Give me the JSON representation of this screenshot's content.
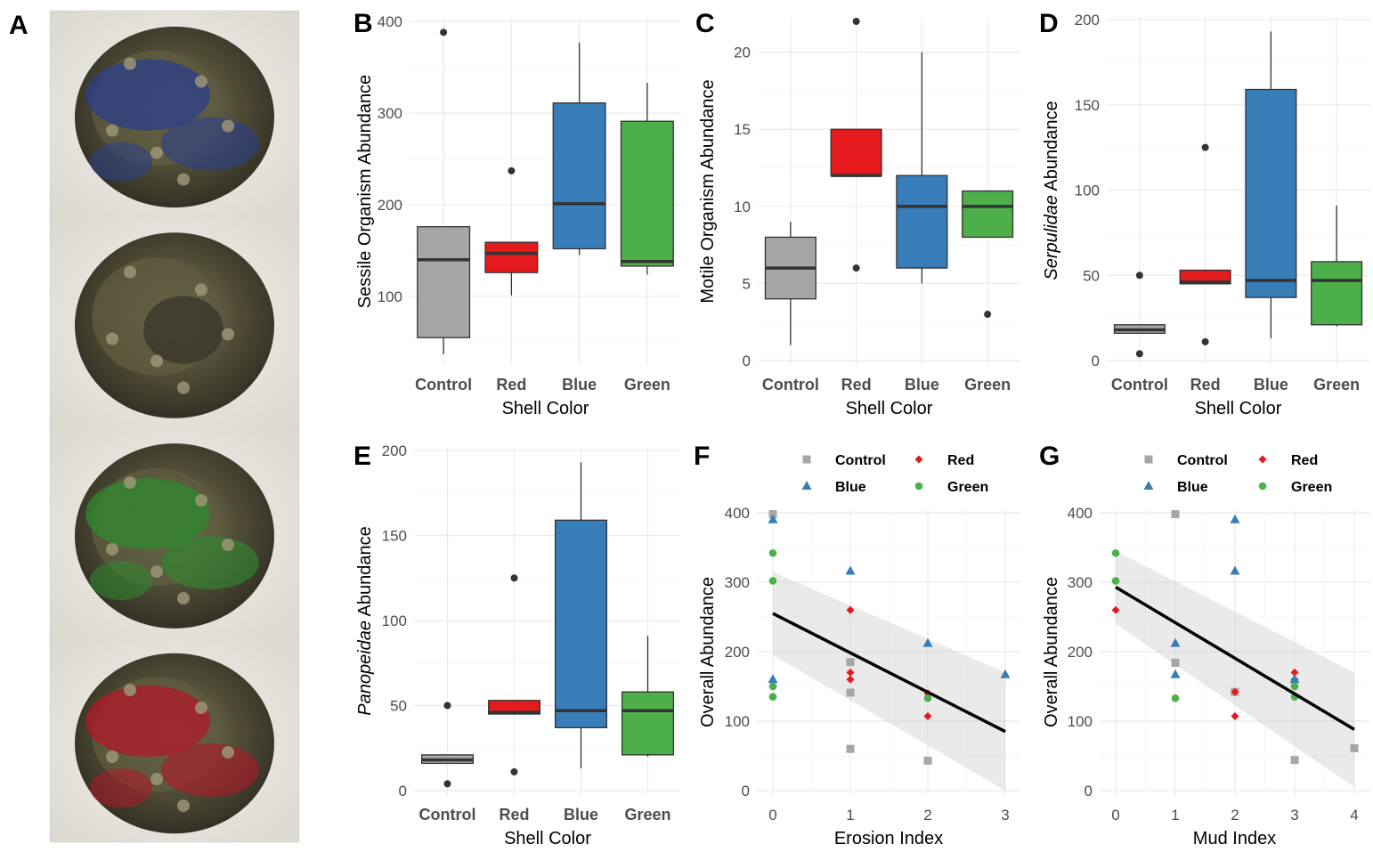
{
  "panel_letters": [
    "A",
    "B",
    "C",
    "D",
    "E",
    "F",
    "G"
  ],
  "colors": {
    "Control": "#a6a6a6",
    "Red": "#e41a1c",
    "Blue": "#377eb8",
    "Green": "#4daf4a"
  },
  "photo_panel": {
    "letter": "A",
    "photos": [
      {
        "name": "blue-painted-oyster-photo",
        "tint": "#2b3f8a"
      },
      {
        "name": "control-oyster-photo",
        "tint": "#6b6a4a"
      },
      {
        "name": "green-painted-oyster-photo",
        "tint": "#2e8a2e"
      },
      {
        "name": "red-painted-oyster-photo",
        "tint": "#b01828"
      }
    ]
  },
  "chart_data": [
    {
      "panel": "B",
      "type": "box",
      "categories": [
        "Control",
        "Red",
        "Blue",
        "Green"
      ],
      "xlabel": "Shell Color",
      "ylabel_parts": [
        {
          "text": "Sessile Organism Abundance",
          "italic": false
        }
      ],
      "ylim": [
        30,
        400
      ],
      "yticks": [
        100,
        200,
        300,
        400
      ],
      "boxes": [
        {
          "category": "Control",
          "low": 37,
          "q1": 55,
          "median": 140,
          "q3": 176,
          "high": 176,
          "outliers": [
            388
          ]
        },
        {
          "category": "Red",
          "low": 101,
          "q1": 126,
          "median": 147,
          "q3": 159,
          "high": 159,
          "outliers": [
            237
          ]
        },
        {
          "category": "Blue",
          "low": 145,
          "q1": 152,
          "median": 201,
          "q3": 311,
          "high": 377,
          "outliers": []
        },
        {
          "category": "Green",
          "low": 124,
          "q1": 133,
          "median": 138,
          "q3": 291,
          "high": 333,
          "outliers": []
        }
      ]
    },
    {
      "panel": "C",
      "type": "box",
      "categories": [
        "Control",
        "Red",
        "Blue",
        "Green"
      ],
      "xlabel": "Shell Color",
      "ylabel_parts": [
        {
          "text": "Motile Organism Abundance",
          "italic": false
        }
      ],
      "ylim": [
        0,
        22
      ],
      "yticks": [
        0,
        5,
        10,
        15,
        20
      ],
      "boxes": [
        {
          "category": "Control",
          "low": 1,
          "q1": 4,
          "median": 6,
          "q3": 8,
          "high": 9,
          "outliers": []
        },
        {
          "category": "Red",
          "low": 12,
          "q1": 12,
          "median": 12,
          "q3": 15,
          "high": 15,
          "outliers": [
            22,
            6
          ]
        },
        {
          "category": "Blue",
          "low": 5,
          "q1": 6,
          "median": 10,
          "q3": 12,
          "high": 20,
          "outliers": []
        },
        {
          "category": "Green",
          "low": 8,
          "q1": 8,
          "median": 10,
          "q3": 11,
          "high": 11,
          "outliers": [
            3
          ]
        }
      ]
    },
    {
      "panel": "D",
      "type": "box",
      "categories": [
        "Control",
        "Red",
        "Blue",
        "Green"
      ],
      "xlabel": "Shell Color",
      "ylabel_parts": [
        {
          "text": "Serpulidae",
          "italic": true
        },
        {
          "text": " Abundance",
          "italic": false
        }
      ],
      "ylim": [
        0,
        200
      ],
      "yticks": [
        0,
        50,
        100,
        150,
        200
      ],
      "boxes": [
        {
          "category": "Control",
          "low": 16,
          "q1": 16,
          "median": 18,
          "q3": 21,
          "high": 21,
          "outliers": [
            50,
            4
          ]
        },
        {
          "category": "Red",
          "low": 45,
          "q1": 45,
          "median": 46,
          "q3": 53,
          "high": 53,
          "outliers": [
            125,
            11
          ]
        },
        {
          "category": "Blue",
          "low": 13,
          "q1": 37,
          "median": 47,
          "q3": 159,
          "high": 193,
          "outliers": []
        },
        {
          "category": "Green",
          "low": 20,
          "q1": 21,
          "median": 47,
          "q3": 58,
          "high": 91,
          "outliers": []
        }
      ]
    },
    {
      "panel": "E",
      "type": "box",
      "categories": [
        "Control",
        "Red",
        "Blue",
        "Green"
      ],
      "xlabel": "Shell Color",
      "ylabel_parts": [
        {
          "text": "Panopeidae",
          "italic": true
        },
        {
          "text": " Abundance",
          "italic": false
        }
      ],
      "ylim": [
        0,
        200
      ],
      "yticks": [
        0,
        50,
        100,
        150,
        200
      ],
      "boxes": [
        {
          "category": "Control",
          "low": 16,
          "q1": 16,
          "median": 18,
          "q3": 21,
          "high": 21,
          "outliers": [
            50,
            4
          ]
        },
        {
          "category": "Red",
          "low": 45,
          "q1": 45,
          "median": 46,
          "q3": 53,
          "high": 53,
          "outliers": [
            125,
            11
          ]
        },
        {
          "category": "Blue",
          "low": 13,
          "q1": 37,
          "median": 47,
          "q3": 159,
          "high": 193,
          "outliers": []
        },
        {
          "category": "Green",
          "low": 20,
          "q1": 21,
          "median": 47,
          "q3": 58,
          "high": 91,
          "outliers": []
        }
      ]
    },
    {
      "panel": "F",
      "type": "scatter",
      "xlabel": "Erosion Index",
      "ylabel_parts": [
        {
          "text": "Overall Abundance",
          "italic": false
        }
      ],
      "xlim": [
        0,
        3
      ],
      "ylim": [
        0,
        400
      ],
      "xticks": [
        0,
        1,
        2,
        3
      ],
      "yticks": [
        0,
        100,
        200,
        300,
        400
      ],
      "legend": [
        {
          "label": "Control",
          "shape": "square",
          "group": "Control"
        },
        {
          "label": "Red",
          "shape": "diamond",
          "group": "Red"
        },
        {
          "label": "Blue",
          "shape": "triangle",
          "group": "Blue"
        },
        {
          "label": "Green",
          "shape": "circle",
          "group": "Green"
        }
      ],
      "points": [
        {
          "group": "Control",
          "x": 0,
          "y": 398
        },
        {
          "group": "Control",
          "x": 1,
          "y": 185
        },
        {
          "group": "Control",
          "x": 1,
          "y": 141
        },
        {
          "group": "Control",
          "x": 1,
          "y": 60
        },
        {
          "group": "Control",
          "x": 2,
          "y": 43
        },
        {
          "group": "Red",
          "x": 1,
          "y": 260
        },
        {
          "group": "Red",
          "x": 1,
          "y": 170
        },
        {
          "group": "Red",
          "x": 1,
          "y": 160
        },
        {
          "group": "Red",
          "x": 2,
          "y": 140
        },
        {
          "group": "Red",
          "x": 2,
          "y": 107
        },
        {
          "group": "Blue",
          "x": 0,
          "y": 390
        },
        {
          "group": "Blue",
          "x": 0,
          "y": 160
        },
        {
          "group": "Blue",
          "x": 1,
          "y": 316
        },
        {
          "group": "Blue",
          "x": 2,
          "y": 212
        },
        {
          "group": "Blue",
          "x": 3,
          "y": 167
        },
        {
          "group": "Green",
          "x": 0,
          "y": 342
        },
        {
          "group": "Green",
          "x": 0,
          "y": 302
        },
        {
          "group": "Green",
          "x": 0,
          "y": 150
        },
        {
          "group": "Green",
          "x": 0,
          "y": 135
        },
        {
          "group": "Green",
          "x": 2,
          "y": 133
        }
      ],
      "fit": {
        "x": [
          0,
          3
        ],
        "y": [
          255,
          85
        ],
        "ci_lower": [
          195,
          0
        ],
        "ci_upper": [
          315,
          170
        ]
      }
    },
    {
      "panel": "G",
      "type": "scatter",
      "xlabel": "Mud Index",
      "ylabel_parts": [
        {
          "text": "Overall Abundance",
          "italic": false
        }
      ],
      "xlim": [
        0,
        4
      ],
      "ylim": [
        0,
        400
      ],
      "xticks": [
        0,
        1,
        2,
        3,
        4
      ],
      "yticks": [
        0,
        100,
        200,
        300,
        400
      ],
      "legend": [
        {
          "label": "Control",
          "shape": "square",
          "group": "Control"
        },
        {
          "label": "Red",
          "shape": "diamond",
          "group": "Red"
        },
        {
          "label": "Blue",
          "shape": "triangle",
          "group": "Blue"
        },
        {
          "label": "Green",
          "shape": "circle",
          "group": "Green"
        }
      ],
      "points": [
        {
          "group": "Control",
          "x": 1,
          "y": 398
        },
        {
          "group": "Control",
          "x": 1,
          "y": 184
        },
        {
          "group": "Control",
          "x": 2,
          "y": 142
        },
        {
          "group": "Control",
          "x": 3,
          "y": 44
        },
        {
          "group": "Control",
          "x": 4,
          "y": 61
        },
        {
          "group": "Red",
          "x": 0,
          "y": 260
        },
        {
          "group": "Red",
          "x": 2,
          "y": 142
        },
        {
          "group": "Red",
          "x": 2,
          "y": 107
        },
        {
          "group": "Red",
          "x": 3,
          "y": 170
        },
        {
          "group": "Red",
          "x": 3,
          "y": 160
        },
        {
          "group": "Blue",
          "x": 1,
          "y": 212
        },
        {
          "group": "Blue",
          "x": 1,
          "y": 167
        },
        {
          "group": "Blue",
          "x": 2,
          "y": 390
        },
        {
          "group": "Blue",
          "x": 2,
          "y": 316
        },
        {
          "group": "Blue",
          "x": 3,
          "y": 160
        },
        {
          "group": "Green",
          "x": 0,
          "y": 342
        },
        {
          "group": "Green",
          "x": 0,
          "y": 302
        },
        {
          "group": "Green",
          "x": 1,
          "y": 133
        },
        {
          "group": "Green",
          "x": 3,
          "y": 150
        },
        {
          "group": "Green",
          "x": 3,
          "y": 135
        }
      ],
      "fit": {
        "x": [
          0,
          4
        ],
        "y": [
          293,
          88
        ],
        "ci_lower": [
          240,
          5
        ],
        "ci_upper": [
          345,
          170
        ]
      }
    }
  ]
}
